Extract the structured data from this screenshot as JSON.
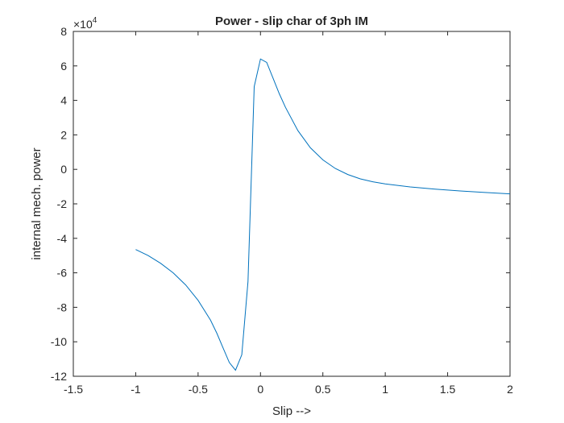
{
  "chart_data": {
    "type": "line",
    "title": "Power - slip char of 3ph IM",
    "xlabel": "Slip -->",
    "ylabel": "internal mech. power",
    "y_multiplier_base": "×10",
    "y_multiplier_exp": "4",
    "xlim": [
      -1.5,
      2
    ],
    "ylim": [
      -12,
      8
    ],
    "y_unit_scale": 10000,
    "xticks": [
      -1.5,
      -1,
      -0.5,
      0,
      0.5,
      1,
      1.5,
      2
    ],
    "xtick_labels": [
      "-1.5",
      "-1",
      "-0.5",
      "0",
      "0.5",
      "1",
      "1.5",
      "2"
    ],
    "yticks": [
      -12,
      -10,
      -8,
      -6,
      -4,
      -2,
      0,
      2,
      4,
      6,
      8
    ],
    "ytick_labels": [
      "-12",
      "-10",
      "-8",
      "-6",
      "-4",
      "-2",
      "0",
      "2",
      "4",
      "6",
      "8"
    ],
    "grid": false,
    "series": [
      {
        "color": "#0072BD",
        "x": [
          -1,
          -0.9,
          -0.8,
          -0.7,
          -0.6,
          -0.5,
          -0.4,
          -0.35,
          -0.3,
          -0.25,
          -0.2,
          -0.15,
          -0.1,
          -0.05,
          0,
          0.05,
          0.1,
          0.15,
          0.2,
          0.3,
          0.4,
          0.5,
          0.6,
          0.7,
          0.8,
          0.9,
          1,
          1.2,
          1.4,
          1.6,
          1.8,
          2
        ],
        "y": [
          -4.65,
          -5.0,
          -5.45,
          -6.0,
          -6.7,
          -7.6,
          -8.75,
          -9.5,
          -10.35,
          -11.2,
          -11.65,
          -10.75,
          -6.5,
          4.8,
          6.4,
          6.2,
          5.3,
          4.4,
          3.6,
          2.25,
          1.25,
          0.55,
          0.05,
          -0.3,
          -0.55,
          -0.72,
          -0.84,
          -1.02,
          -1.15,
          -1.25,
          -1.34,
          -1.42
        ]
      }
    ]
  }
}
